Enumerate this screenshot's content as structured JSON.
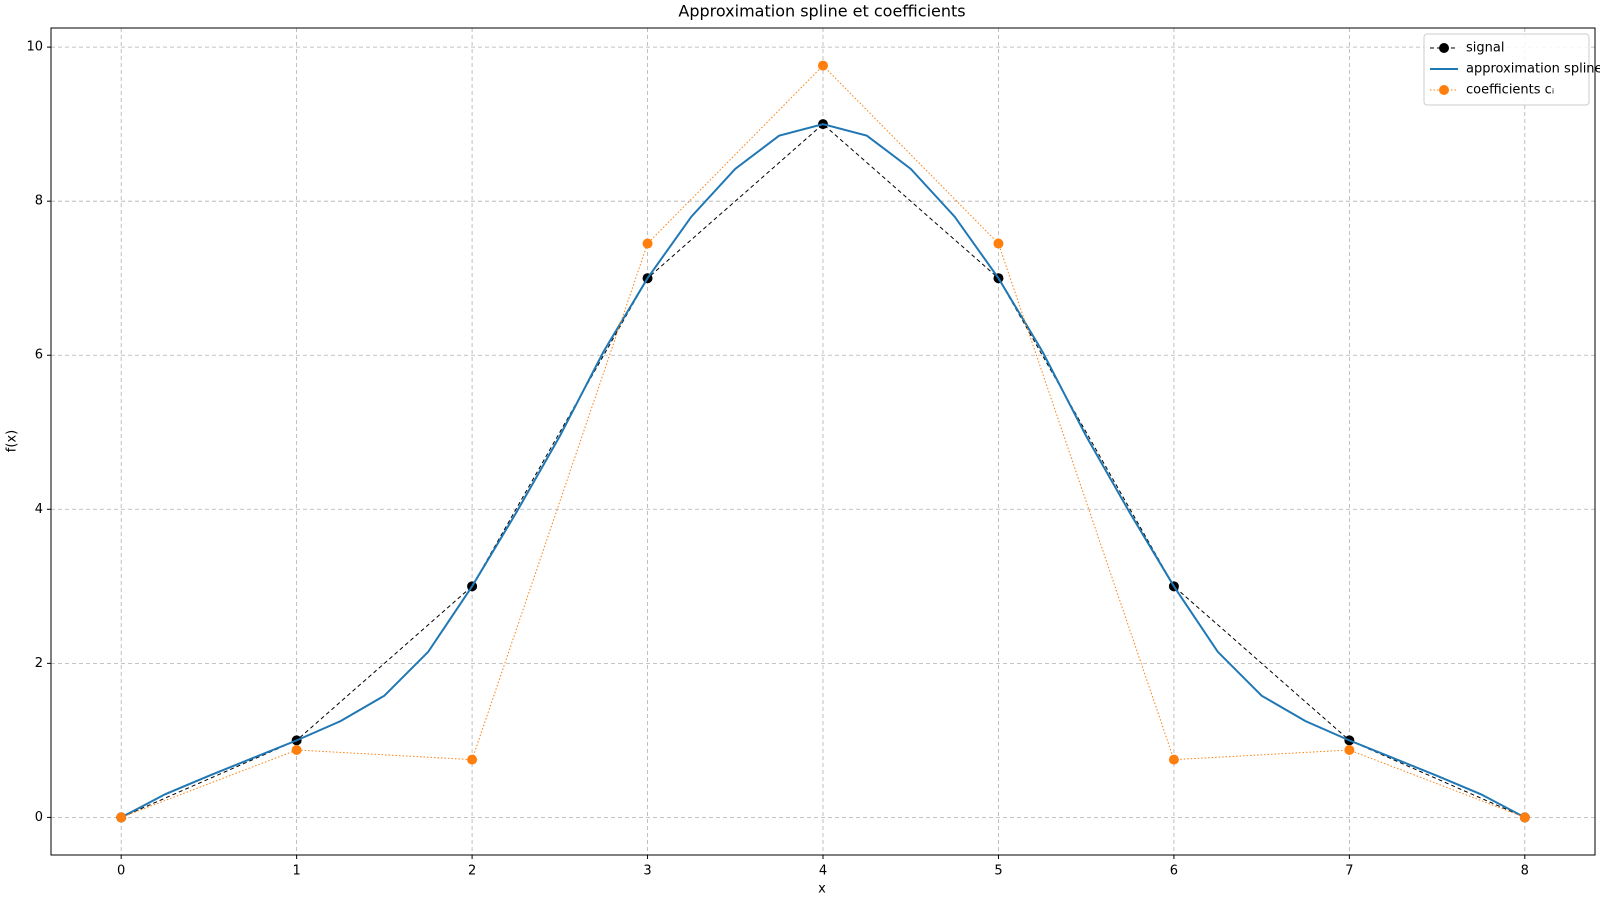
{
  "chart_data": {
    "type": "line",
    "title": "Approximation spline et coefficients",
    "x_label": "x",
    "y_label": "f(x)",
    "xlim": [
      -0.4,
      8.4
    ],
    "ylim": [
      -0.488,
      10.248
    ],
    "xticks": [
      0,
      1,
      2,
      3,
      4,
      5,
      6,
      7,
      8
    ],
    "yticks": [
      0,
      2,
      4,
      6,
      8,
      10
    ],
    "grid": true,
    "legend": "upper right",
    "series": [
      {
        "name": "signal",
        "color": "#000000",
        "style": "dashed",
        "marker": true,
        "x": [
          0,
          1,
          2,
          3,
          4,
          5,
          6,
          7,
          8
        ],
        "values": [
          0,
          1,
          3,
          7,
          9,
          7,
          3,
          1,
          0
        ]
      },
      {
        "name": "approximation spline",
        "color": "#1f77b4",
        "style": "solid",
        "marker": false,
        "x": [
          0,
          0.25,
          0.5,
          0.75,
          1,
          1.25,
          1.5,
          1.75,
          2,
          2.25,
          2.5,
          2.75,
          3,
          3.25,
          3.5,
          3.75,
          4,
          4.25,
          4.5,
          4.75,
          5,
          5.25,
          5.5,
          5.75,
          6,
          6.25,
          6.5,
          6.75,
          7,
          7.25,
          7.5,
          7.75,
          8
        ],
        "values": [
          0,
          0.3,
          0.54,
          0.77,
          1,
          1.25,
          1.58,
          2.15,
          3,
          3.95,
          4.95,
          6.05,
          7,
          7.8,
          8.42,
          8.85,
          9,
          8.85,
          8.42,
          7.8,
          7,
          6.05,
          4.95,
          3.95,
          3,
          2.15,
          1.58,
          1.25,
          1,
          0.77,
          0.54,
          0.3,
          0
        ]
      },
      {
        "name": "coefficients cᵢ",
        "color": "#ff7f0e",
        "style": "dotted",
        "marker": true,
        "x": [
          0,
          1,
          2,
          3,
          4,
          5,
          6,
          7,
          8
        ],
        "values": [
          0,
          0.875,
          0.75,
          7.45,
          9.76,
          7.45,
          0.75,
          0.875,
          0
        ]
      }
    ]
  }
}
